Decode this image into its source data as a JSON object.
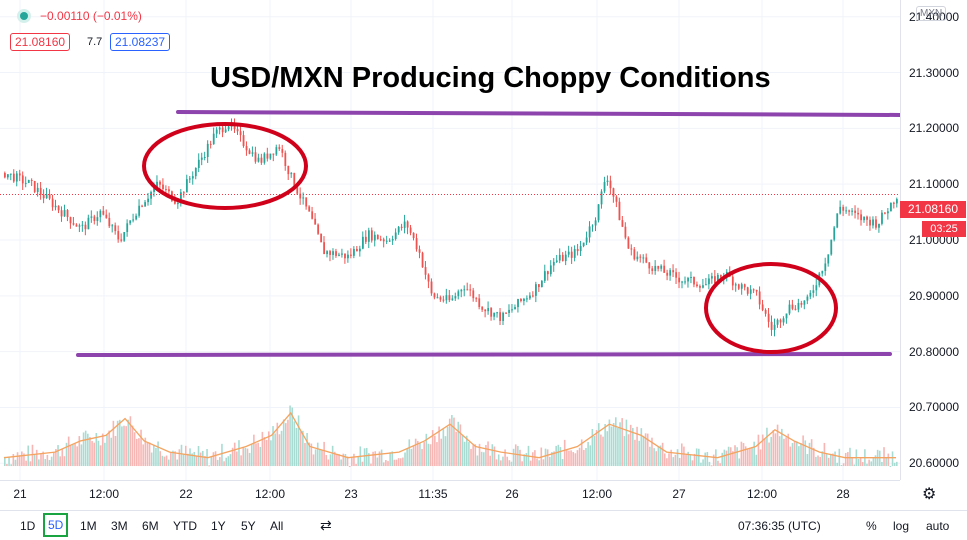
{
  "header": {
    "change": "−0.00110 (−0.01%)",
    "bid": "21.08160",
    "spread": "7.7",
    "ask": "21.08237"
  },
  "symbol": "MXN",
  "last_price": "21.08160",
  "countdown": "03:25",
  "toolbar": {
    "timeframes": [
      "1D",
      "5D",
      "1M",
      "3M",
      "6M",
      "YTD",
      "1Y",
      "5Y",
      "All"
    ],
    "selected": "5D",
    "clock": "07:36:35 (UTC)",
    "percent": "%",
    "log": "log",
    "auto": "auto"
  },
  "colors": {
    "up": "#26a69a",
    "down": "#ef5350",
    "volume_up": "#a8dcd3",
    "volume_down": "#f7b6b4",
    "volume_ma": "#f4a460",
    "annotation_lines": "#8e44ad",
    "annotation_circles": "#d0021b",
    "last_price": "#f23645"
  },
  "chart_data": {
    "type": "candlestick",
    "title": "USD/MXN Producing Choppy Conditions",
    "y_ticks": [
      "21.40000",
      "21.30000",
      "21.20000",
      "21.10000",
      "21.00000",
      "20.90000",
      "20.80000",
      "20.70000",
      "20.60000"
    ],
    "x_ticks": [
      "21",
      "12:00",
      "22",
      "12:00",
      "23",
      "11:35",
      "26",
      "12:00",
      "27",
      "12:00",
      "28"
    ],
    "ylim": [
      20.57,
      21.43
    ],
    "close_path": [
      [
        0,
        21.12
      ],
      [
        2,
        21.1
      ],
      [
        4,
        21.06
      ],
      [
        6,
        21.02
      ],
      [
        7.5,
        21.05
      ],
      [
        9,
        21.0
      ],
      [
        10.5,
        21.06
      ],
      [
        12,
        21.1
      ],
      [
        13.5,
        21.07
      ],
      [
        15,
        21.13
      ],
      [
        16.5,
        21.19
      ],
      [
        17.5,
        21.21
      ],
      [
        18.5,
        21.18
      ],
      [
        20,
        21.14
      ],
      [
        21.5,
        21.17
      ],
      [
        22.5,
        21.11
      ],
      [
        24,
        21.04
      ],
      [
        25,
        20.98
      ],
      [
        27,
        20.97
      ],
      [
        28.5,
        21.01
      ],
      [
        30,
        21.0
      ],
      [
        31.5,
        21.03
      ],
      [
        32.5,
        20.98
      ],
      [
        33.5,
        20.9
      ],
      [
        35,
        20.89
      ],
      [
        36,
        20.92
      ],
      [
        37.5,
        20.88
      ],
      [
        39,
        20.86
      ],
      [
        40,
        20.88
      ],
      [
        41.5,
        20.91
      ],
      [
        43,
        20.96
      ],
      [
        45,
        20.98
      ],
      [
        46.5,
        21.05
      ],
      [
        47.2,
        21.12
      ],
      [
        48,
        21.06
      ],
      [
        49,
        20.98
      ],
      [
        51,
        20.95
      ],
      [
        53,
        20.93
      ],
      [
        55,
        20.92
      ],
      [
        56.5,
        20.94
      ],
      [
        57.5,
        20.92
      ],
      [
        59,
        20.9
      ],
      [
        60.2,
        20.84
      ],
      [
        61.5,
        20.88
      ],
      [
        63,
        20.89
      ],
      [
        64.5,
        20.97
      ],
      [
        65.5,
        21.06
      ],
      [
        67,
        21.04
      ],
      [
        68.5,
        21.03
      ],
      [
        70,
        21.08
      ]
    ],
    "volume_ma": [
      [
        0,
        20.61
      ],
      [
        4,
        20.62
      ],
      [
        6,
        20.64
      ],
      [
        8,
        20.65
      ],
      [
        9.5,
        20.68
      ],
      [
        11,
        20.64
      ],
      [
        13,
        20.62
      ],
      [
        16,
        20.61
      ],
      [
        19,
        20.63
      ],
      [
        21,
        20.65
      ],
      [
        22.5,
        20.69
      ],
      [
        24,
        20.63
      ],
      [
        27,
        20.61
      ],
      [
        31,
        20.62
      ],
      [
        33,
        20.64
      ],
      [
        35,
        20.67
      ],
      [
        37,
        20.63
      ],
      [
        39,
        20.62
      ],
      [
        42,
        20.61
      ],
      [
        45,
        20.63
      ],
      [
        47.5,
        20.67
      ],
      [
        50,
        20.65
      ],
      [
        52,
        20.62
      ],
      [
        56,
        20.61
      ],
      [
        59,
        20.63
      ],
      [
        60.5,
        20.66
      ],
      [
        62,
        20.64
      ],
      [
        64,
        20.62
      ],
      [
        66,
        20.61
      ],
      [
        70,
        20.61
      ]
    ],
    "grid": true,
    "price_axis": "right"
  }
}
